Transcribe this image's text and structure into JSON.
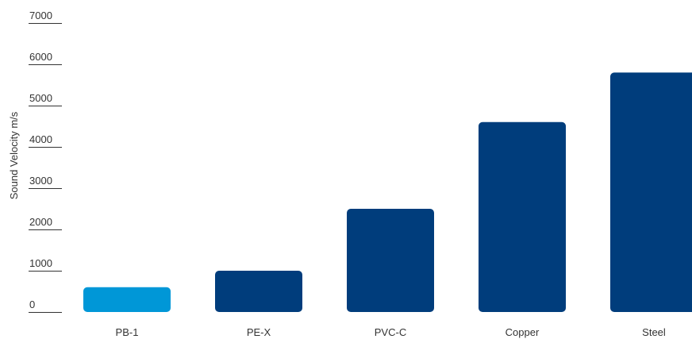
{
  "chart_data": {
    "type": "bar",
    "title": "",
    "xlabel": "",
    "ylabel": "Sound Velocity m/s",
    "categories": [
      "PB-1",
      "PE-X",
      "PVC-C",
      "Copper",
      "Steel"
    ],
    "values": [
      600,
      1000,
      2500,
      4600,
      5800
    ],
    "ylim": [
      0,
      7000
    ],
    "yticks": [
      "0",
      "1000",
      "2000",
      "3000",
      "4000",
      "5000",
      "6000",
      "7000"
    ],
    "grid": false,
    "legend": "none",
    "colors": {
      "highlight": "#0097d7",
      "default": "#003d7c"
    },
    "highlight_category": "PB-1"
  }
}
